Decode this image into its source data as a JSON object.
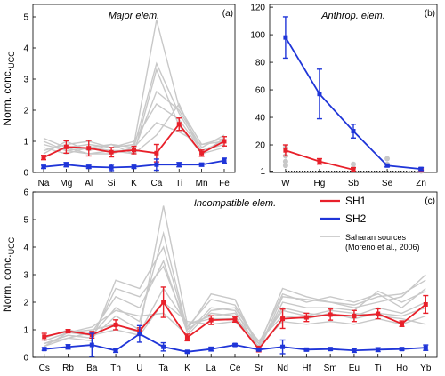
{
  "chart_data": [
    {
      "id": "a",
      "type": "line",
      "panel_label": "(a)",
      "title": "Major elem.",
      "ylabel": "Norm. conc.UCC",
      "ylabel_main": "Norm. conc.",
      "ylabel_sub": "UCC",
      "categories": [
        "Na",
        "Mg",
        "Al",
        "Si",
        "K",
        "Ca",
        "Ti",
        "Mn",
        "Fe"
      ],
      "ylim": [
        0,
        5.4
      ],
      "yticks": [
        0,
        1,
        2,
        3,
        4,
        5
      ],
      "series": [
        {
          "name": "SH1",
          "color": "#e8202a",
          "values": [
            0.48,
            0.82,
            0.78,
            0.65,
            0.72,
            0.62,
            1.55,
            0.62,
            1.0
          ],
          "err": [
            0.07,
            0.2,
            0.25,
            0.15,
            0.12,
            0.28,
            0.2,
            0.1,
            0.15
          ]
        },
        {
          "name": "SH2",
          "color": "#1f35d8",
          "values": [
            0.18,
            0.25,
            0.18,
            0.16,
            0.18,
            0.25,
            0.25,
            0.25,
            0.38
          ],
          "err": [
            0.05,
            0.07,
            0.05,
            0.1,
            0.05,
            0.18,
            0.07,
            0.05,
            0.08
          ]
        }
      ],
      "saharan_lines": [
        [
          0.9,
          0.7,
          0.6,
          0.6,
          0.8,
          3.5,
          1.9,
          0.7,
          1.0
        ],
        [
          1.1,
          0.8,
          0.9,
          0.8,
          0.9,
          4.9,
          2.1,
          0.9,
          1.1
        ],
        [
          0.6,
          1.0,
          0.7,
          0.9,
          0.6,
          3.3,
          1.5,
          0.6,
          0.8
        ],
        [
          0.8,
          0.6,
          0.8,
          0.7,
          0.7,
          2.6,
          2.0,
          0.8,
          1.2
        ],
        [
          0.7,
          0.9,
          1.0,
          0.8,
          1.0,
          2.2,
          1.7,
          0.7,
          0.9
        ],
        [
          1.0,
          0.7,
          0.8,
          0.9,
          0.8,
          1.6,
          1.3,
          0.9,
          1.0
        ],
        [
          0.5,
          0.8,
          0.6,
          0.7,
          0.6,
          1.2,
          2.2,
          0.6,
          1.1
        ]
      ]
    },
    {
      "id": "b",
      "type": "line",
      "panel_label": "(b)",
      "title": "Anthrop. elem.",
      "categories": [
        "W",
        "Hg",
        "Sb",
        "Se",
        "Zn"
      ],
      "ylim": [
        0,
        122
      ],
      "yticks": [
        1,
        20,
        40,
        60,
        80,
        100,
        120
      ],
      "reference_line": 1,
      "series": [
        {
          "name": "SH1",
          "color": "#e8202a",
          "values": [
            16,
            8,
            2,
            null,
            1.5
          ],
          "err": [
            4,
            2,
            1.5,
            null,
            1
          ]
        },
        {
          "name": "SH2",
          "color": "#1f35d8",
          "values": [
            98,
            57,
            30,
            5,
            2.5
          ],
          "err": [
            15,
            18,
            5,
            1,
            1
          ]
        }
      ],
      "saharan_points": [
        {
          "x": "W",
          "y": [
            5,
            8,
            12,
            18
          ]
        },
        {
          "x": "Sb",
          "y": [
            3,
            6
          ]
        },
        {
          "x": "Se",
          "y": [
            6,
            10
          ]
        },
        {
          "x": "Zn",
          "y": [
            1
          ]
        }
      ]
    },
    {
      "id": "c",
      "type": "line",
      "panel_label": "(c)",
      "title": "Incompatible elem.",
      "ylabel": "Norm. conc.UCC",
      "ylabel_main": "Norm. conc.",
      "ylabel_sub": "UCC",
      "categories": [
        "Cs",
        "Rb",
        "Ba",
        "Th",
        "U",
        "Ta",
        "K",
        "La",
        "Ce",
        "Sr",
        "Nd",
        "Hf",
        "Sm",
        "Eu",
        "Ti",
        "Ho",
        "Yb"
      ],
      "ylim": [
        0,
        6
      ],
      "yticks": [
        0,
        1,
        2,
        3,
        4,
        5,
        6
      ],
      "series": [
        {
          "name": "SH1",
          "color": "#e8202a",
          "values": [
            0.75,
            0.95,
            0.82,
            1.18,
            0.95,
            2.0,
            0.72,
            1.35,
            1.38,
            0.3,
            1.4,
            1.45,
            1.55,
            1.5,
            1.58,
            1.22,
            1.92
          ],
          "err": [
            0.12,
            0.06,
            0.12,
            0.18,
            0.12,
            0.55,
            0.12,
            0.16,
            0.1,
            0.1,
            0.35,
            0.15,
            0.2,
            0.2,
            0.18,
            0.1,
            0.32
          ]
        },
        {
          "name": "SH2",
          "color": "#1f35d8",
          "values": [
            0.3,
            0.38,
            0.45,
            0.25,
            0.85,
            0.38,
            0.2,
            0.3,
            0.45,
            0.28,
            0.38,
            0.28,
            0.3,
            0.25,
            0.28,
            0.3,
            0.35
          ],
          "err": [
            0.05,
            0.08,
            0.42,
            0.07,
            0.3,
            0.15,
            0.04,
            0.07,
            0.04,
            0.04,
            0.25,
            0.05,
            0.05,
            0.07,
            0.07,
            0.05,
            0.1
          ]
        }
      ],
      "saharan_lines": [
        [
          0.5,
          0.8,
          0.7,
          1.5,
          1.0,
          5.5,
          1.2,
          1.4,
          1.4,
          0.5,
          2.3,
          2.0,
          2.2,
          2.0,
          2.3,
          1.8,
          2.5
        ],
        [
          0.6,
          0.9,
          0.8,
          1.8,
          1.3,
          4.5,
          1.0,
          1.6,
          1.5,
          0.4,
          2.5,
          2.2,
          2.0,
          1.8,
          2.0,
          2.2,
          3.0
        ],
        [
          0.4,
          0.7,
          0.9,
          2.2,
          1.8,
          3.5,
          0.9,
          1.8,
          1.7,
          0.3,
          2.0,
          1.8,
          1.8,
          1.7,
          2.4,
          2.0,
          2.4
        ],
        [
          0.5,
          0.8,
          0.7,
          2.5,
          2.2,
          3.3,
          1.1,
          2.1,
          1.9,
          0.5,
          1.8,
          1.6,
          1.5,
          1.5,
          1.8,
          1.6,
          2.0
        ],
        [
          0.6,
          0.9,
          1.0,
          1.2,
          0.9,
          2.5,
          1.2,
          1.5,
          1.6,
          0.6,
          1.5,
          1.4,
          1.6,
          1.4,
          1.6,
          1.5,
          1.8
        ],
        [
          0.7,
          1.0,
          0.8,
          1.0,
          0.8,
          2.0,
          1.3,
          1.2,
          1.3,
          0.4,
          1.3,
          1.2,
          1.3,
          1.2,
          1.4,
          1.2,
          1.5
        ],
        [
          0.5,
          0.7,
          0.6,
          2.8,
          2.5,
          4.0,
          1.0,
          2.3,
          2.1,
          0.3,
          2.2,
          2.1,
          2.0,
          1.9,
          2.2,
          2.3,
          2.8
        ],
        [
          0.4,
          0.9,
          1.1,
          1.7,
          1.5,
          1.6,
          0.8,
          1.7,
          1.8,
          0.5,
          1.7,
          1.5,
          1.7,
          1.6,
          1.5,
          1.4,
          1.2
        ]
      ]
    }
  ],
  "legend": {
    "placement": "top-right of panel (c)",
    "items": [
      {
        "label": "SH1",
        "color": "#e8202a"
      },
      {
        "label": "SH2",
        "color": "#1f35d8"
      },
      {
        "label": "Saharan sources",
        "label2": "(Moreno et al., 2006)",
        "color": "#c8c8c8"
      }
    ]
  }
}
